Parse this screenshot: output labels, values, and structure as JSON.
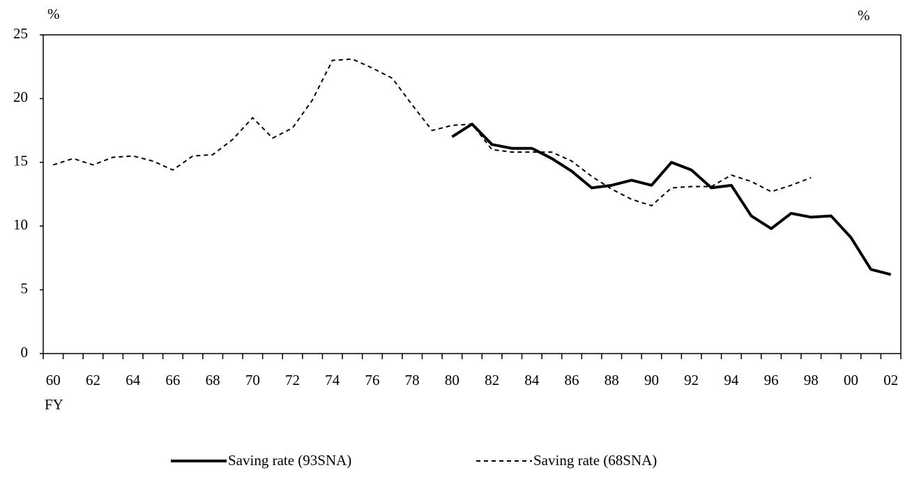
{
  "chart_data": {
    "type": "line",
    "y_label": "%",
    "y_label_right": "%",
    "x_label": "FY",
    "categories": [
      "60",
      null,
      "62",
      null,
      "64",
      null,
      "66",
      null,
      "68",
      null,
      "70",
      null,
      "72",
      null,
      "74",
      null,
      "76",
      null,
      "78",
      null,
      "80",
      null,
      "82",
      null,
      "84",
      null,
      "86",
      null,
      "88",
      null,
      "90",
      null,
      "92",
      null,
      "94",
      null,
      "96",
      null,
      "98",
      null,
      "00",
      null,
      "02"
    ],
    "ylim": [
      0,
      25
    ],
    "yticks": [
      0,
      5,
      10,
      15,
      20,
      25
    ],
    "legend": "bottom",
    "series": [
      {
        "name": "Saving rate (93SNA)",
        "color": "#000000",
        "style": "solid",
        "values": [
          null,
          null,
          null,
          null,
          null,
          null,
          null,
          null,
          null,
          null,
          null,
          null,
          null,
          null,
          null,
          null,
          null,
          null,
          null,
          null,
          17.0,
          18.0,
          16.4,
          16.1,
          16.1,
          15.3,
          14.3,
          13.0,
          13.2,
          13.6,
          13.2,
          15.0,
          14.4,
          13.0,
          13.2,
          10.8,
          9.8,
          11.0,
          10.7,
          10.8,
          9.1,
          6.6,
          6.2
        ]
      },
      {
        "name": "Saving rate (68SNA)",
        "color": "#000000",
        "style": "dashed",
        "values": [
          14.8,
          15.3,
          14.8,
          15.4,
          15.5,
          15.1,
          14.4,
          15.5,
          15.6,
          16.8,
          18.5,
          16.9,
          17.7,
          19.9,
          23.0,
          23.1,
          22.4,
          21.6,
          19.5,
          17.5,
          17.9,
          18.0,
          16.0,
          15.8,
          15.8,
          15.8,
          15.1,
          13.9,
          12.9,
          12.1,
          11.6,
          13.0,
          13.1,
          13.1,
          14.0,
          13.5,
          12.7,
          13.2,
          13.8,
          null,
          null,
          null,
          null
        ]
      }
    ]
  }
}
